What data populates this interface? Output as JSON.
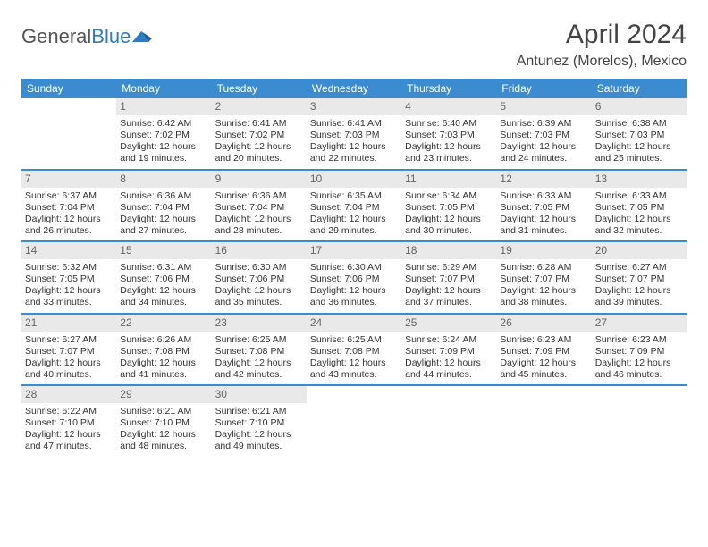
{
  "brand": {
    "part1": "General",
    "part2": "Blue"
  },
  "title": "April 2024",
  "location": "Antunez (Morelos), Mexico",
  "colors": {
    "header_bg": "#3b8bd0",
    "daynum_bg": "#e9e9e9",
    "week_divider": "#3b8bd0",
    "text": "#333333",
    "brand_blue": "#2a7dc4"
  },
  "fonts": {
    "title_size_pt": 22,
    "location_size_pt": 12,
    "weekday_size_pt": 9,
    "cell_size_pt": 8
  },
  "weekdays": [
    "Sunday",
    "Monday",
    "Tuesday",
    "Wednesday",
    "Thursday",
    "Friday",
    "Saturday"
  ],
  "weeks": [
    [
      {
        "n": "",
        "sr": "",
        "ss": "",
        "dl": ""
      },
      {
        "n": "1",
        "sr": "Sunrise: 6:42 AM",
        "ss": "Sunset: 7:02 PM",
        "dl": "Daylight: 12 hours and 19 minutes."
      },
      {
        "n": "2",
        "sr": "Sunrise: 6:41 AM",
        "ss": "Sunset: 7:02 PM",
        "dl": "Daylight: 12 hours and 20 minutes."
      },
      {
        "n": "3",
        "sr": "Sunrise: 6:41 AM",
        "ss": "Sunset: 7:03 PM",
        "dl": "Daylight: 12 hours and 22 minutes."
      },
      {
        "n": "4",
        "sr": "Sunrise: 6:40 AM",
        "ss": "Sunset: 7:03 PM",
        "dl": "Daylight: 12 hours and 23 minutes."
      },
      {
        "n": "5",
        "sr": "Sunrise: 6:39 AM",
        "ss": "Sunset: 7:03 PM",
        "dl": "Daylight: 12 hours and 24 minutes."
      },
      {
        "n": "6",
        "sr": "Sunrise: 6:38 AM",
        "ss": "Sunset: 7:03 PM",
        "dl": "Daylight: 12 hours and 25 minutes."
      }
    ],
    [
      {
        "n": "7",
        "sr": "Sunrise: 6:37 AM",
        "ss": "Sunset: 7:04 PM",
        "dl": "Daylight: 12 hours and 26 minutes."
      },
      {
        "n": "8",
        "sr": "Sunrise: 6:36 AM",
        "ss": "Sunset: 7:04 PM",
        "dl": "Daylight: 12 hours and 27 minutes."
      },
      {
        "n": "9",
        "sr": "Sunrise: 6:36 AM",
        "ss": "Sunset: 7:04 PM",
        "dl": "Daylight: 12 hours and 28 minutes."
      },
      {
        "n": "10",
        "sr": "Sunrise: 6:35 AM",
        "ss": "Sunset: 7:04 PM",
        "dl": "Daylight: 12 hours and 29 minutes."
      },
      {
        "n": "11",
        "sr": "Sunrise: 6:34 AM",
        "ss": "Sunset: 7:05 PM",
        "dl": "Daylight: 12 hours and 30 minutes."
      },
      {
        "n": "12",
        "sr": "Sunrise: 6:33 AM",
        "ss": "Sunset: 7:05 PM",
        "dl": "Daylight: 12 hours and 31 minutes."
      },
      {
        "n": "13",
        "sr": "Sunrise: 6:33 AM",
        "ss": "Sunset: 7:05 PM",
        "dl": "Daylight: 12 hours and 32 minutes."
      }
    ],
    [
      {
        "n": "14",
        "sr": "Sunrise: 6:32 AM",
        "ss": "Sunset: 7:05 PM",
        "dl": "Daylight: 12 hours and 33 minutes."
      },
      {
        "n": "15",
        "sr": "Sunrise: 6:31 AM",
        "ss": "Sunset: 7:06 PM",
        "dl": "Daylight: 12 hours and 34 minutes."
      },
      {
        "n": "16",
        "sr": "Sunrise: 6:30 AM",
        "ss": "Sunset: 7:06 PM",
        "dl": "Daylight: 12 hours and 35 minutes."
      },
      {
        "n": "17",
        "sr": "Sunrise: 6:30 AM",
        "ss": "Sunset: 7:06 PM",
        "dl": "Daylight: 12 hours and 36 minutes."
      },
      {
        "n": "18",
        "sr": "Sunrise: 6:29 AM",
        "ss": "Sunset: 7:07 PM",
        "dl": "Daylight: 12 hours and 37 minutes."
      },
      {
        "n": "19",
        "sr": "Sunrise: 6:28 AM",
        "ss": "Sunset: 7:07 PM",
        "dl": "Daylight: 12 hours and 38 minutes."
      },
      {
        "n": "20",
        "sr": "Sunrise: 6:27 AM",
        "ss": "Sunset: 7:07 PM",
        "dl": "Daylight: 12 hours and 39 minutes."
      }
    ],
    [
      {
        "n": "21",
        "sr": "Sunrise: 6:27 AM",
        "ss": "Sunset: 7:07 PM",
        "dl": "Daylight: 12 hours and 40 minutes."
      },
      {
        "n": "22",
        "sr": "Sunrise: 6:26 AM",
        "ss": "Sunset: 7:08 PM",
        "dl": "Daylight: 12 hours and 41 minutes."
      },
      {
        "n": "23",
        "sr": "Sunrise: 6:25 AM",
        "ss": "Sunset: 7:08 PM",
        "dl": "Daylight: 12 hours and 42 minutes."
      },
      {
        "n": "24",
        "sr": "Sunrise: 6:25 AM",
        "ss": "Sunset: 7:08 PM",
        "dl": "Daylight: 12 hours and 43 minutes."
      },
      {
        "n": "25",
        "sr": "Sunrise: 6:24 AM",
        "ss": "Sunset: 7:09 PM",
        "dl": "Daylight: 12 hours and 44 minutes."
      },
      {
        "n": "26",
        "sr": "Sunrise: 6:23 AM",
        "ss": "Sunset: 7:09 PM",
        "dl": "Daylight: 12 hours and 45 minutes."
      },
      {
        "n": "27",
        "sr": "Sunrise: 6:23 AM",
        "ss": "Sunset: 7:09 PM",
        "dl": "Daylight: 12 hours and 46 minutes."
      }
    ],
    [
      {
        "n": "28",
        "sr": "Sunrise: 6:22 AM",
        "ss": "Sunset: 7:10 PM",
        "dl": "Daylight: 12 hours and 47 minutes."
      },
      {
        "n": "29",
        "sr": "Sunrise: 6:21 AM",
        "ss": "Sunset: 7:10 PM",
        "dl": "Daylight: 12 hours and 48 minutes."
      },
      {
        "n": "30",
        "sr": "Sunrise: 6:21 AM",
        "ss": "Sunset: 7:10 PM",
        "dl": "Daylight: 12 hours and 49 minutes."
      },
      {
        "n": "",
        "sr": "",
        "ss": "",
        "dl": ""
      },
      {
        "n": "",
        "sr": "",
        "ss": "",
        "dl": ""
      },
      {
        "n": "",
        "sr": "",
        "ss": "",
        "dl": ""
      },
      {
        "n": "",
        "sr": "",
        "ss": "",
        "dl": ""
      }
    ]
  ]
}
